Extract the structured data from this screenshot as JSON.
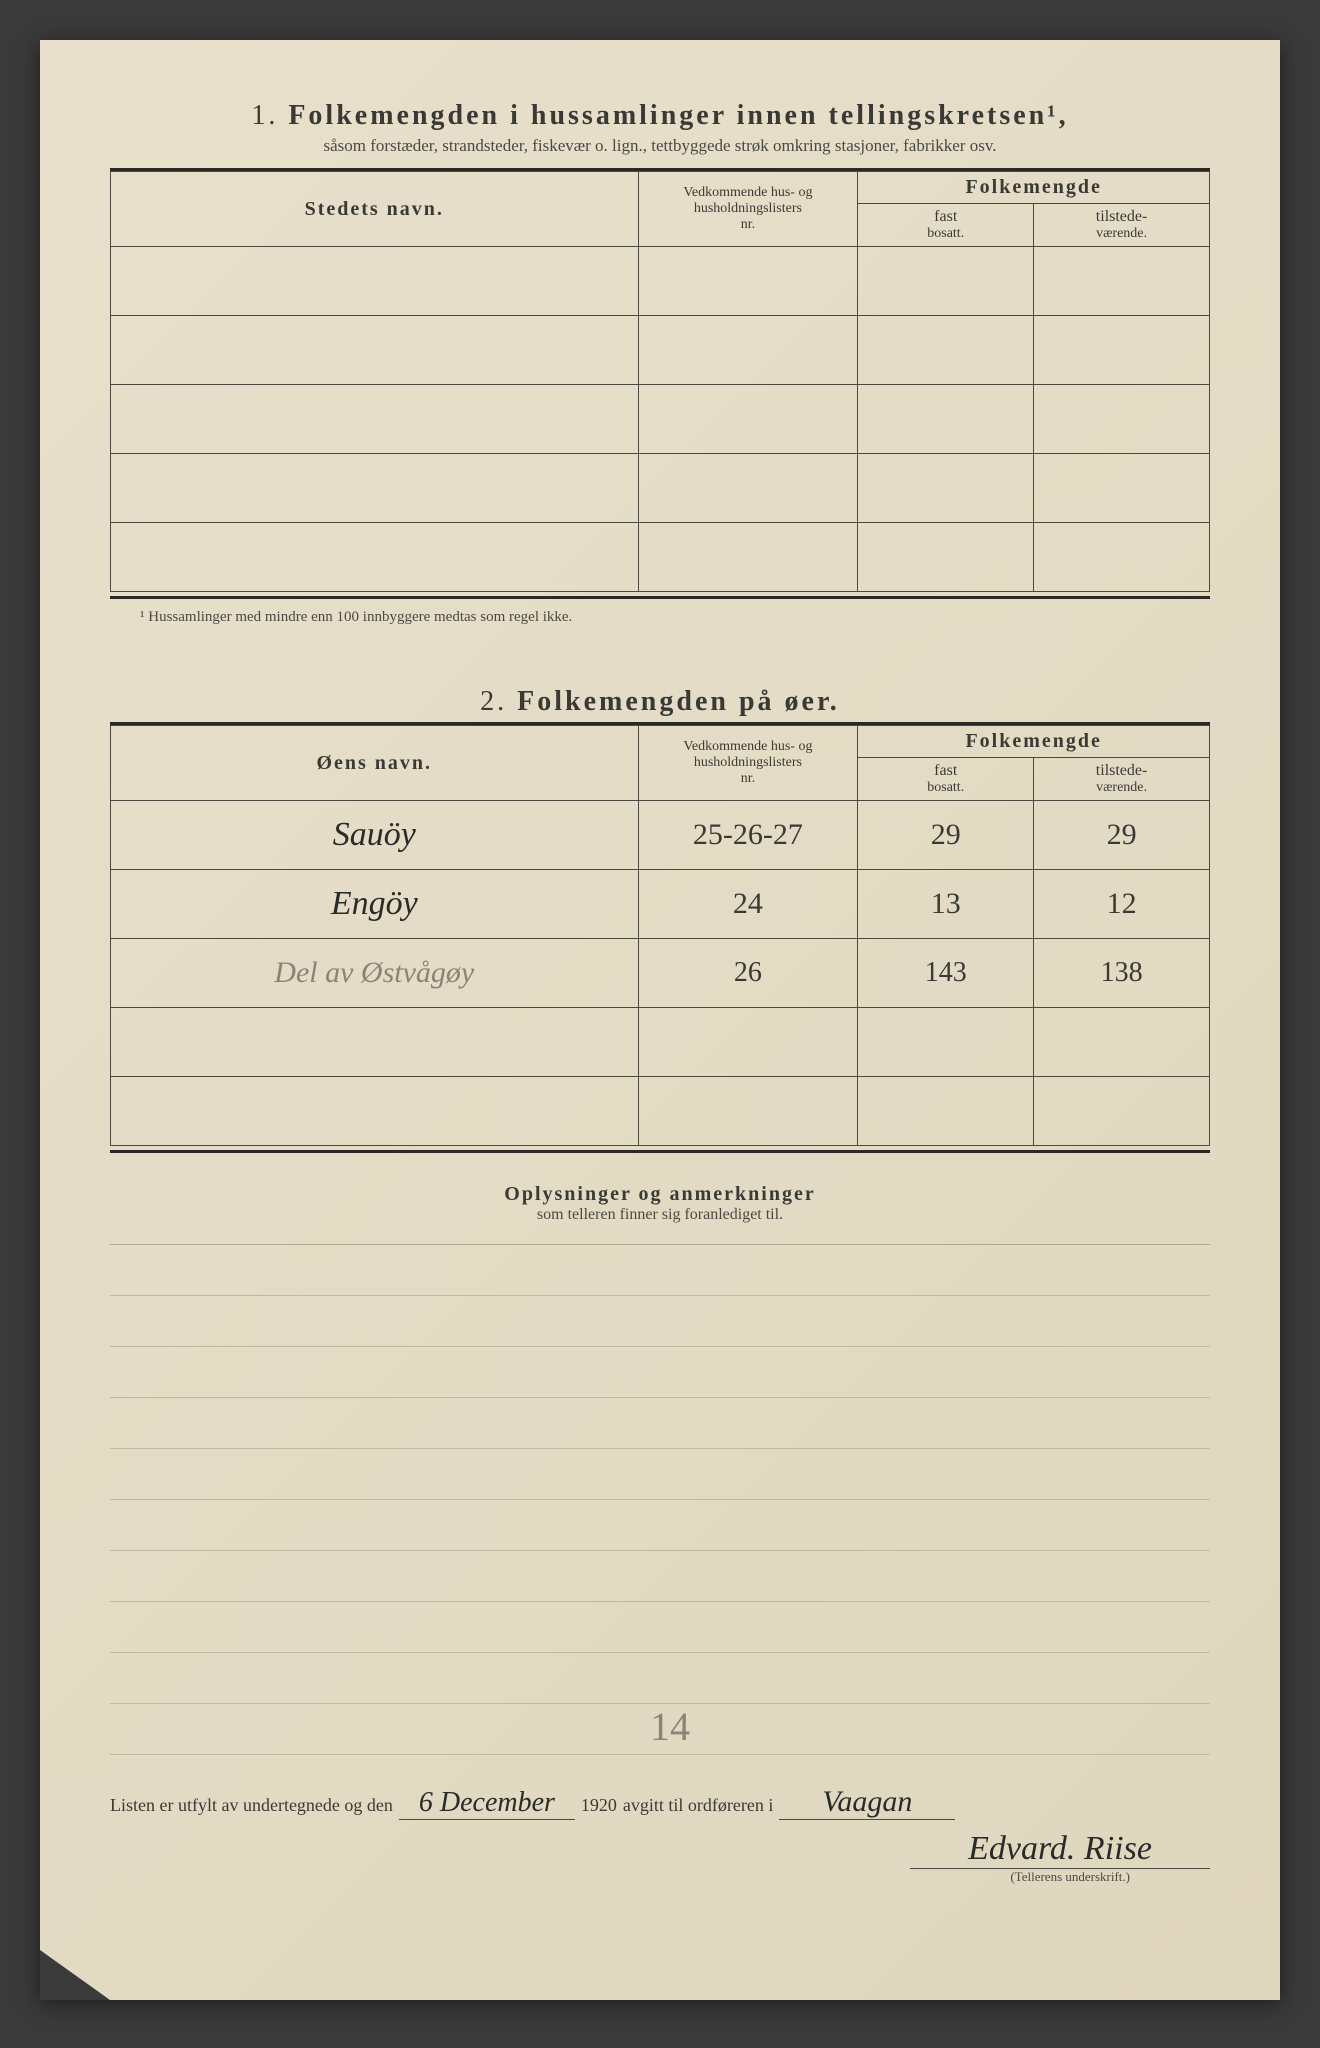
{
  "section1": {
    "number": "1.",
    "title": "Folkemengden i hussamlinger innen tellingskretsen¹,",
    "subtitle": "såsom forstæder, strandsteder, fiskevær o. lign., tettbyggede strøk omkring stasjoner, fabrikker osv.",
    "headers": {
      "col1": "Stedets navn.",
      "col2_line1": "Vedkommende hus- og",
      "col2_line2": "husholdningslisters",
      "col2_line3": "nr.",
      "col3_group": "Folkemengde",
      "col3a_line1": "fast",
      "col3a_line2": "bosatt.",
      "col3b_line1": "tilstede-",
      "col3b_line2": "værende."
    },
    "footnote": "¹ Hussamlinger med mindre enn 100 innbyggere medtas som regel ikke."
  },
  "section2": {
    "number": "2.",
    "title": "Folkemengden på øer.",
    "headers": {
      "col1": "Øens navn.",
      "col2_line1": "Vedkommende hus- og",
      "col2_line2": "husholdningslisters",
      "col2_line3": "nr.",
      "col3_group": "Folkemengde",
      "col3a_line1": "fast",
      "col3a_line2": "bosatt.",
      "col3b_line1": "tilstede-",
      "col3b_line2": "værende."
    },
    "rows": [
      {
        "name": "Sauöy",
        "nr": "25-26-27",
        "fast": "29",
        "tilstede": "29",
        "style": "ink"
      },
      {
        "name": "Engöy",
        "nr": "24",
        "fast": "13",
        "tilstede": "12",
        "style": "ink"
      },
      {
        "name": "Del av Østvågøy",
        "nr": "26",
        "fast": "143",
        "tilstede": "138",
        "style": "pencil"
      }
    ]
  },
  "section3": {
    "title": "Oplysninger og anmerkninger",
    "subtitle": "som telleren finner sig foranlediget til."
  },
  "pencil_mark": "14",
  "bottom": {
    "text1": "Listen er utfylt av undertegnede og den",
    "date": "6 December",
    "year": "1920",
    "text2": "avgitt til ordføreren i",
    "place": "Vaagan",
    "signature": "Edvard. Riise",
    "signature_caption": "(Tellerens underskrift.)"
  },
  "styling": {
    "page_bg": "#e4dcc6",
    "text_color": "#3a3a35",
    "border_color": "#4a4a40",
    "handwriting_ink": "#2a2a28",
    "handwriting_pencil": "#888478",
    "title_fontsize": 28,
    "body_fontsize": 17
  }
}
